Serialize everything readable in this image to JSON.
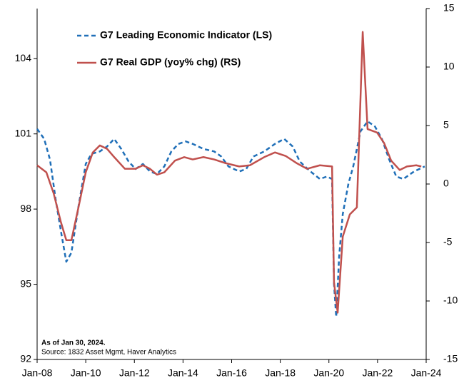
{
  "chart_data": {
    "type": "line",
    "legend": "top-left",
    "annotations": [
      "As of Jan 30, 2024.",
      "Source: 1832 Asset Mgmt, Haver Analytics"
    ],
    "xlim": [
      2008,
      2024
    ],
    "xticks": [
      {
        "value": 2008,
        "label": "Jan-08"
      },
      {
        "value": 2010,
        "label": "Jan-10"
      },
      {
        "value": 2012,
        "label": "Jan-12"
      },
      {
        "value": 2014,
        "label": "Jan-14"
      },
      {
        "value": 2016,
        "label": "Jan-16"
      },
      {
        "value": 2018,
        "label": "Jan-18"
      },
      {
        "value": 2020,
        "label": "Jan-20"
      },
      {
        "value": 2022,
        "label": "Jan-22"
      },
      {
        "value": 2024,
        "label": "Jan-24"
      }
    ],
    "ylim": [
      92,
      106
    ],
    "yticks": [
      92,
      95,
      98,
      101,
      104
    ],
    "y2lim": [
      -15,
      15
    ],
    "y2ticks": [
      -15,
      -10,
      -5,
      0,
      5,
      10,
      15
    ],
    "series": [
      {
        "name": "G7 Leading Economic Indicator (LS)",
        "color": "#1f6fb8",
        "dash": true,
        "x": [
          2008.0,
          2008.29,
          2008.53,
          2008.76,
          2009.0,
          2009.2,
          2009.41,
          2009.7,
          2010.0,
          2010.23,
          2010.58,
          2010.88,
          2011.17,
          2011.46,
          2011.76,
          2012.05,
          2012.35,
          2012.64,
          2012.93,
          2013.23,
          2013.52,
          2013.81,
          2014.11,
          2014.4,
          2014.84,
          2015.28,
          2015.57,
          2015.87,
          2016.31,
          2016.6,
          2016.9,
          2017.34,
          2017.78,
          2018.16,
          2018.51,
          2018.8,
          2019.24,
          2019.63,
          2019.92,
          2020.13,
          2020.21,
          2020.3,
          2020.42,
          2020.57,
          2020.8,
          2021.0,
          2021.3,
          2021.59,
          2021.89,
          2022.18,
          2022.47,
          2022.77,
          2023.06,
          2023.5,
          2023.94
        ],
        "values": [
          101.2,
          100.8,
          99.97,
          98.4,
          97.0,
          95.9,
          96.26,
          98.1,
          99.8,
          100.2,
          100.3,
          100.5,
          100.8,
          100.4,
          99.9,
          99.6,
          99.8,
          99.5,
          99.4,
          99.7,
          100.3,
          100.6,
          100.7,
          100.6,
          100.4,
          100.3,
          100.1,
          99.7,
          99.5,
          99.6,
          100.1,
          100.3,
          100.6,
          100.8,
          100.5,
          99.9,
          99.5,
          99.2,
          99.3,
          99.2,
          95.0,
          93.7,
          96.1,
          97.8,
          99.0,
          99.7,
          101.1,
          101.5,
          101.3,
          100.8,
          100.0,
          99.3,
          99.2,
          99.5,
          99.7
        ]
      },
      {
        "name": "G7 Real GDP (yoy% chg) (RS)",
        "color": "#c0504d",
        "axis": "y2",
        "x": [
          2008.0,
          2008.38,
          2008.68,
          2008.97,
          2009.2,
          2009.41,
          2009.7,
          2010.0,
          2010.29,
          2010.58,
          2010.88,
          2011.17,
          2011.61,
          2012.05,
          2012.35,
          2012.64,
          2012.93,
          2013.23,
          2013.67,
          2014.05,
          2014.4,
          2014.84,
          2015.28,
          2015.72,
          2016.31,
          2016.75,
          2017.34,
          2017.78,
          2018.22,
          2018.66,
          2019.1,
          2019.63,
          2020.13,
          2020.21,
          2020.36,
          2020.57,
          2020.86,
          2021.15,
          2021.39,
          2021.59,
          2021.98,
          2022.27,
          2022.56,
          2022.91,
          2023.21,
          2023.59,
          2023.8
        ],
        "values": [
          1.6,
          1.0,
          -0.8,
          -3.2,
          -4.8,
          -4.8,
          -2.0,
          1.0,
          2.7,
          3.3,
          3.0,
          2.3,
          1.3,
          1.3,
          1.6,
          1.3,
          0.8,
          1.0,
          2.0,
          2.3,
          2.1,
          2.3,
          2.1,
          1.8,
          1.5,
          1.6,
          2.3,
          2.7,
          2.4,
          1.8,
          1.3,
          1.6,
          1.5,
          -8.4,
          -11.0,
          -4.5,
          -2.6,
          -2.0,
          13.0,
          4.7,
          4.4,
          3.5,
          2.0,
          1.2,
          1.5,
          1.6,
          1.5
        ]
      }
    ]
  }
}
